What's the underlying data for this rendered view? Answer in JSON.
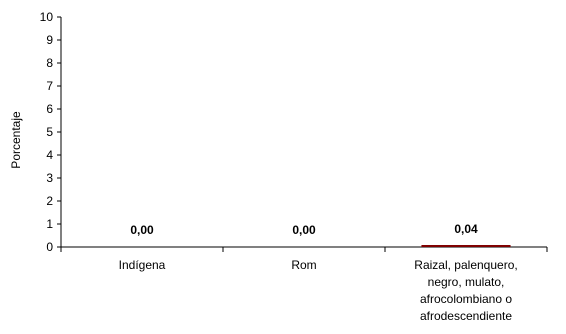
{
  "chart_data": {
    "type": "bar",
    "ylabel": "Porcentaje",
    "ylim": [
      0,
      10
    ],
    "yticks": [
      "0",
      "1",
      "2",
      "3",
      "4",
      "5",
      "6",
      "7",
      "8",
      "9",
      "10"
    ],
    "categories": [
      [
        "Indígena"
      ],
      [
        "Rom"
      ],
      [
        "Raizal, palenquero,",
        "negro, mulato,",
        "afrocolombiano o",
        "afrodescendiente"
      ]
    ],
    "values": [
      0.0,
      0.0,
      0.04
    ],
    "data_labels": [
      "0,00",
      "0,00",
      "0,04"
    ],
    "bar_color": "#800000",
    "grid": false,
    "legend": "none"
  }
}
